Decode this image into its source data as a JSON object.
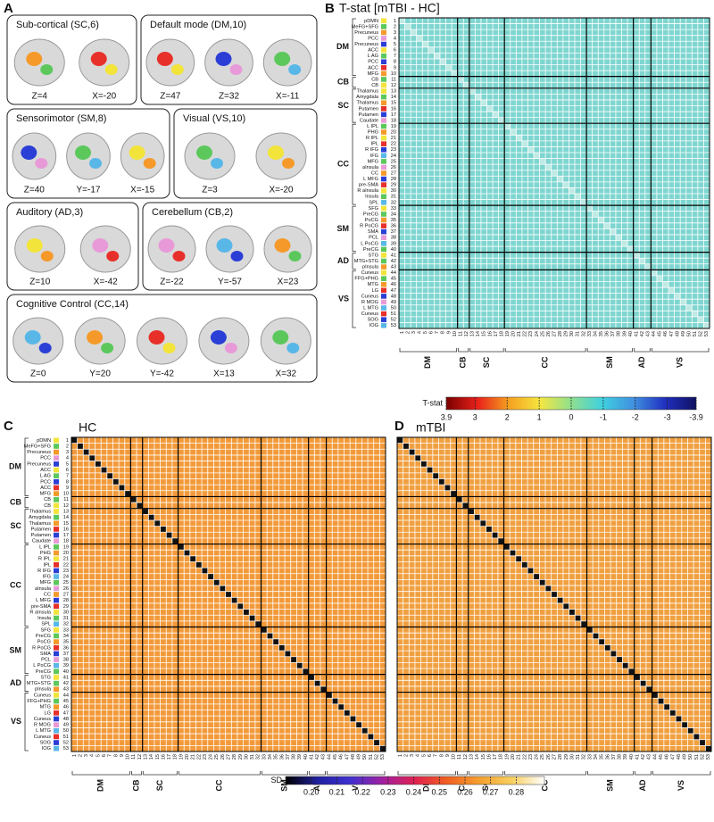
{
  "panels": [
    "A",
    "B",
    "C",
    "D"
  ],
  "networks_panel": {
    "boxes": [
      {
        "title": "Sub-cortical  (SC,6)",
        "views": [
          "Z=4",
          "X=-20"
        ]
      },
      {
        "title": "Default mode  (DM,10)",
        "views": [
          "Z=47",
          "Z=32",
          "X=-11"
        ]
      },
      {
        "title": "Sensorimotor  (SM,8)",
        "views": [
          "Z=40",
          "Y=-17",
          "X=-15"
        ]
      },
      {
        "title": "Visual  (VS,10)",
        "views": [
          "Z=3",
          "X=-20"
        ]
      },
      {
        "title": "Auditory  (AD,3)",
        "views": [
          "Z=10",
          "X=-42"
        ]
      },
      {
        "title": "Cerebellum  (CB,2)",
        "views": [
          "Z=-22",
          "Y=-57",
          "X=23"
        ]
      },
      {
        "title": "Cognitive Control  (CC,14)",
        "views": [
          "Z=0",
          "Y=20",
          "Y=-42",
          "X=13",
          "X=32"
        ]
      }
    ]
  },
  "regions": {
    "names": [
      "pDMN",
      "MeFG+SFG",
      "Precuneus",
      "PCC",
      "Precuneus",
      "ACC",
      "L AG",
      "PCC",
      "ACC",
      "MFG",
      "CB",
      "CB",
      "Thalamus",
      "Amygdala",
      "Thalamus",
      "Putamen",
      "Putamen",
      "Caudate",
      "L IPL",
      "PHG",
      "R IPL",
      "IPL",
      "R IFG",
      "IFG",
      "MFG",
      "aInsula",
      "CC",
      "L MFG",
      "pre-SMA",
      "R aInsula",
      "Insula",
      "SPL",
      "SFG",
      "PreCG",
      "PoCG",
      "R PoCG",
      "SMA",
      "PCL",
      "L PoCG",
      "PreCG",
      "STG",
      "MTG+STG",
      "pInsula",
      "Cuneus",
      "FFG+PHG",
      "MTG",
      "LG",
      "Cuneus",
      "R MOG",
      "L MTG",
      "Cuneus",
      "SOG",
      "IOG"
    ],
    "numbers": [
      1,
      2,
      3,
      4,
      5,
      6,
      7,
      8,
      9,
      10,
      11,
      12,
      13,
      14,
      15,
      16,
      17,
      18,
      19,
      20,
      21,
      22,
      23,
      24,
      25,
      26,
      27,
      28,
      29,
      30,
      31,
      32,
      33,
      34,
      35,
      36,
      37,
      38,
      39,
      40,
      41,
      42,
      43,
      44,
      45,
      46,
      47,
      48,
      49,
      50,
      51,
      52,
      53
    ],
    "colors": [
      "#f2e43a",
      "#5cc85c",
      "#f59a2a",
      "#e89ad8",
      "#2b3fd6",
      "#f2e43a",
      "#5cc85c",
      "#2b3fd6",
      "#e8302a",
      "#f59a2a",
      "#5cc85c",
      "#f2e43a",
      "#f2e43a",
      "#5cc85c",
      "#f59a2a",
      "#e8302a",
      "#2b3fd6",
      "#e89ad8",
      "#5cc85c",
      "#f59a2a",
      "#f2e43a",
      "#e8302a",
      "#2b3fd6",
      "#59b7e8",
      "#5cc85c",
      "#e89ad8",
      "#f59a2a",
      "#2b3fd6",
      "#e8302a",
      "#f2e43a",
      "#5cc85c",
      "#59b7e8",
      "#f2e43a",
      "#5cc85c",
      "#f59a2a",
      "#e8302a",
      "#2b3fd6",
      "#e89ad8",
      "#59b7e8",
      "#5cc85c",
      "#f2e43a",
      "#5cc85c",
      "#f59a2a",
      "#f2e43a",
      "#5cc85c",
      "#f59a2a",
      "#e8302a",
      "#2b3fd6",
      "#e89ad8",
      "#59b7e8",
      "#e8302a",
      "#2b3fd6",
      "#59b7e8"
    ]
  },
  "groups": [
    {
      "label": "DM",
      "size": 10
    },
    {
      "label": "CB",
      "size": 2
    },
    {
      "label": "SC",
      "size": 6
    },
    {
      "label": "CC",
      "size": 14
    },
    {
      "label": "SM",
      "size": 8
    },
    {
      "label": "AD",
      "size": 3
    },
    {
      "label": "VS",
      "size": 10
    }
  ],
  "matrices": [
    {
      "title": "T-stat [mTBI - HC]",
      "fill": "#7fd6d0",
      "diagonal": "#bfe9e4"
    },
    {
      "title": "HC",
      "fill": "#f29a3a",
      "diagonal": "#111111"
    },
    {
      "title": "mTBI",
      "fill": "#f0a040",
      "diagonal": "#111111"
    }
  ],
  "colorbars": [
    {
      "title": "T-stat",
      "lim": [
        3.9,
        -3.9
      ],
      "ticks": [
        3.9,
        3,
        2,
        1,
        0,
        -1,
        -2,
        -3,
        -3.9
      ],
      "colors": [
        "#7a0000",
        "#e8201a",
        "#f5a020",
        "#f5e640",
        "#8ee08e",
        "#3fd0e0",
        "#4090e0",
        "#2030c0",
        "#101060"
      ]
    },
    {
      "title": "SD",
      "lim": [
        0.19,
        0.291
      ],
      "ticks": [
        {
          "value": 0.2,
          "label": "0.20"
        },
        0.21,
        0.22,
        0.23,
        0.24,
        0.25,
        0.26,
        0.27,
        0.28
      ],
      "colors": [
        "#000000",
        "#2020a0",
        "#4030d0",
        "#a020a0",
        "#e02050",
        "#f06020",
        "#f5a030",
        "#f8d060",
        "#ffffff"
      ]
    }
  ]
}
